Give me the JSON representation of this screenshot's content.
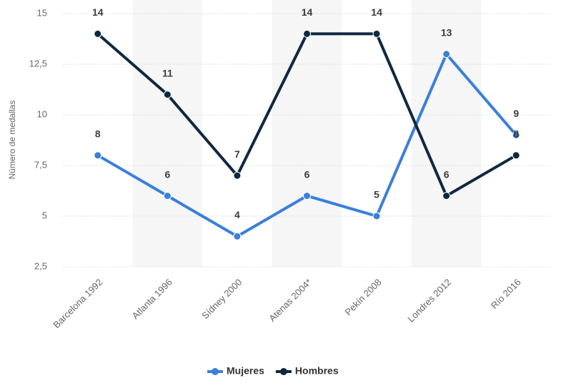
{
  "chart_data": {
    "type": "line",
    "y_axis_label": "Número de medallas",
    "categories": [
      "Barcelona 1992",
      "Atlanta 1996",
      "Sídney 2000",
      "Atenas 2004*",
      "Pekín 2008",
      "Londres 2012",
      "Río 2016"
    ],
    "series": [
      {
        "name": "Mujeres",
        "color": "#3a7fdc",
        "values": [
          8,
          6,
          4,
          6,
          5,
          13,
          9
        ]
      },
      {
        "name": "Hombres",
        "color": "#0e2840",
        "values": [
          14,
          11,
          7,
          14,
          14,
          6,
          8
        ]
      }
    ],
    "ylim": [
      2.5,
      15
    ],
    "yticks": [
      {
        "value": 2.5,
        "label": "2,5"
      },
      5,
      {
        "value": 7.5,
        "label": "7,5"
      },
      10,
      {
        "value": 12.5,
        "label": "12,5"
      },
      15
    ],
    "grid": true
  }
}
